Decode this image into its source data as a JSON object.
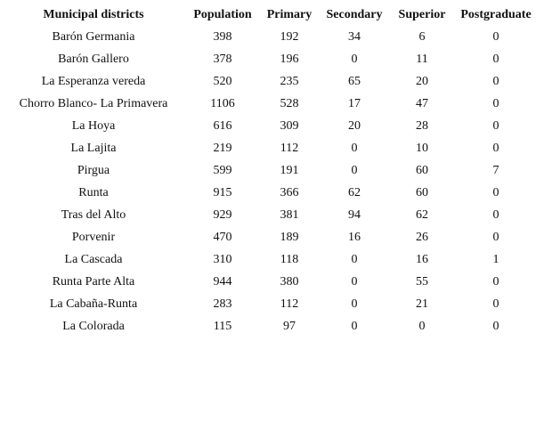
{
  "table": {
    "header": [
      "Municipal districts",
      "Population",
      "Primary",
      "Secondary",
      "Superior",
      "Postgraduate"
    ],
    "rows": [
      [
        "Barón Germania",
        398,
        192,
        34,
        6,
        0
      ],
      [
        "Barón Gallero",
        378,
        196,
        0,
        11,
        0
      ],
      [
        "La Esperanza vereda",
        520,
        235,
        65,
        20,
        0
      ],
      [
        "Chorro Blanco- La Primavera",
        1106,
        528,
        17,
        47,
        0
      ],
      [
        "La Hoya",
        616,
        309,
        20,
        28,
        0
      ],
      [
        "La Lajita",
        219,
        112,
        0,
        10,
        0
      ],
      [
        "Pirgua",
        599,
        191,
        0,
        60,
        7
      ],
      [
        "Runta",
        915,
        366,
        62,
        60,
        0
      ],
      [
        "Tras del Alto",
        929,
        381,
        94,
        62,
        0
      ],
      [
        "Porvenir",
        470,
        189,
        16,
        26,
        0
      ],
      [
        "La Cascada",
        310,
        118,
        0,
        16,
        1
      ],
      [
        "Runta Parte Alta",
        944,
        380,
        0,
        55,
        0
      ],
      [
        "La Cabaña-Runta",
        283,
        112,
        0,
        21,
        0
      ],
      [
        "La Colorada",
        115,
        97,
        0,
        0,
        0
      ]
    ]
  }
}
